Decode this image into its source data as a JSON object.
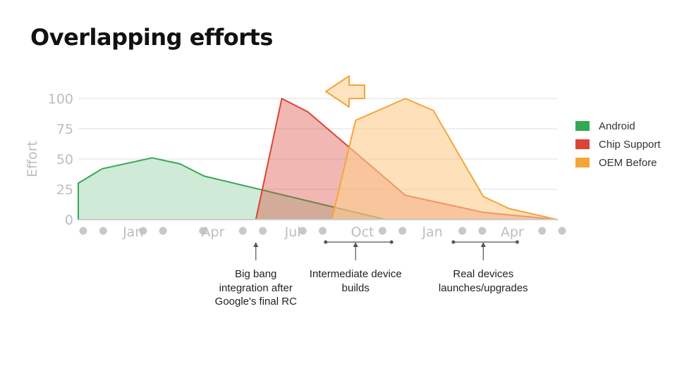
{
  "title": "Overlapping efforts",
  "chart_data": {
    "type": "area",
    "ylabel": "Effort",
    "ylim": [
      0,
      100
    ],
    "yticks": [
      0,
      25,
      50,
      75,
      100
    ],
    "xlim": [
      0,
      24
    ],
    "x_month_labels": [
      {
        "label": "Jan",
        "x": 2.5
      },
      {
        "label": "Apr",
        "x": 6.5
      },
      {
        "label": "Jul",
        "x": 10.5
      },
      {
        "label": "Oct",
        "x": 14.0
      },
      {
        "label": "Jan",
        "x": 17.5
      },
      {
        "label": "Apr",
        "x": 21.5
      }
    ],
    "x_dots": [
      0,
      1,
      3,
      4,
      6,
      8,
      9,
      11,
      12,
      15,
      16,
      19,
      20,
      23,
      24
    ],
    "grid": true,
    "legend_position": "right",
    "series": [
      {
        "name": "Android",
        "color": "#34a853",
        "fill": "#cfead6",
        "points": [
          [
            0,
            0
          ],
          [
            0,
            30
          ],
          [
            1.2,
            42
          ],
          [
            3.7,
            51
          ],
          [
            5.1,
            46
          ],
          [
            6.3,
            36
          ],
          [
            15.4,
            0
          ]
        ]
      },
      {
        "name": "Chip Support",
        "color": "#db4437",
        "fill": "rgba(219,68,55,0.38)",
        "points": [
          [
            8.9,
            0
          ],
          [
            10.2,
            100
          ],
          [
            11.5,
            89
          ],
          [
            16.4,
            20
          ],
          [
            20.3,
            6
          ],
          [
            24,
            0
          ]
        ]
      },
      {
        "name": "OEM Before",
        "color": "#f4a53a",
        "fill": "rgba(253,205,140,0.6)",
        "points": [
          [
            12.7,
            0
          ],
          [
            13.9,
            82
          ],
          [
            16.4,
            100
          ],
          [
            17.8,
            90
          ],
          [
            20.3,
            19
          ],
          [
            21.6,
            9
          ],
          [
            24,
            0
          ]
        ]
      }
    ],
    "arrow_direction": "left",
    "annotations": [
      {
        "text_lines": [
          "Big bang",
          "integration after",
          "Google's final RC"
        ],
        "x": 8.9
      },
      {
        "text_lines": [
          "Intermediate device",
          "builds"
        ],
        "x": 13.9,
        "range": [
          12.4,
          15.7
        ]
      },
      {
        "text_lines": [
          "Real devices",
          "launches/upgrades"
        ],
        "x": 20.3,
        "range": [
          18.8,
          22
        ]
      }
    ]
  }
}
